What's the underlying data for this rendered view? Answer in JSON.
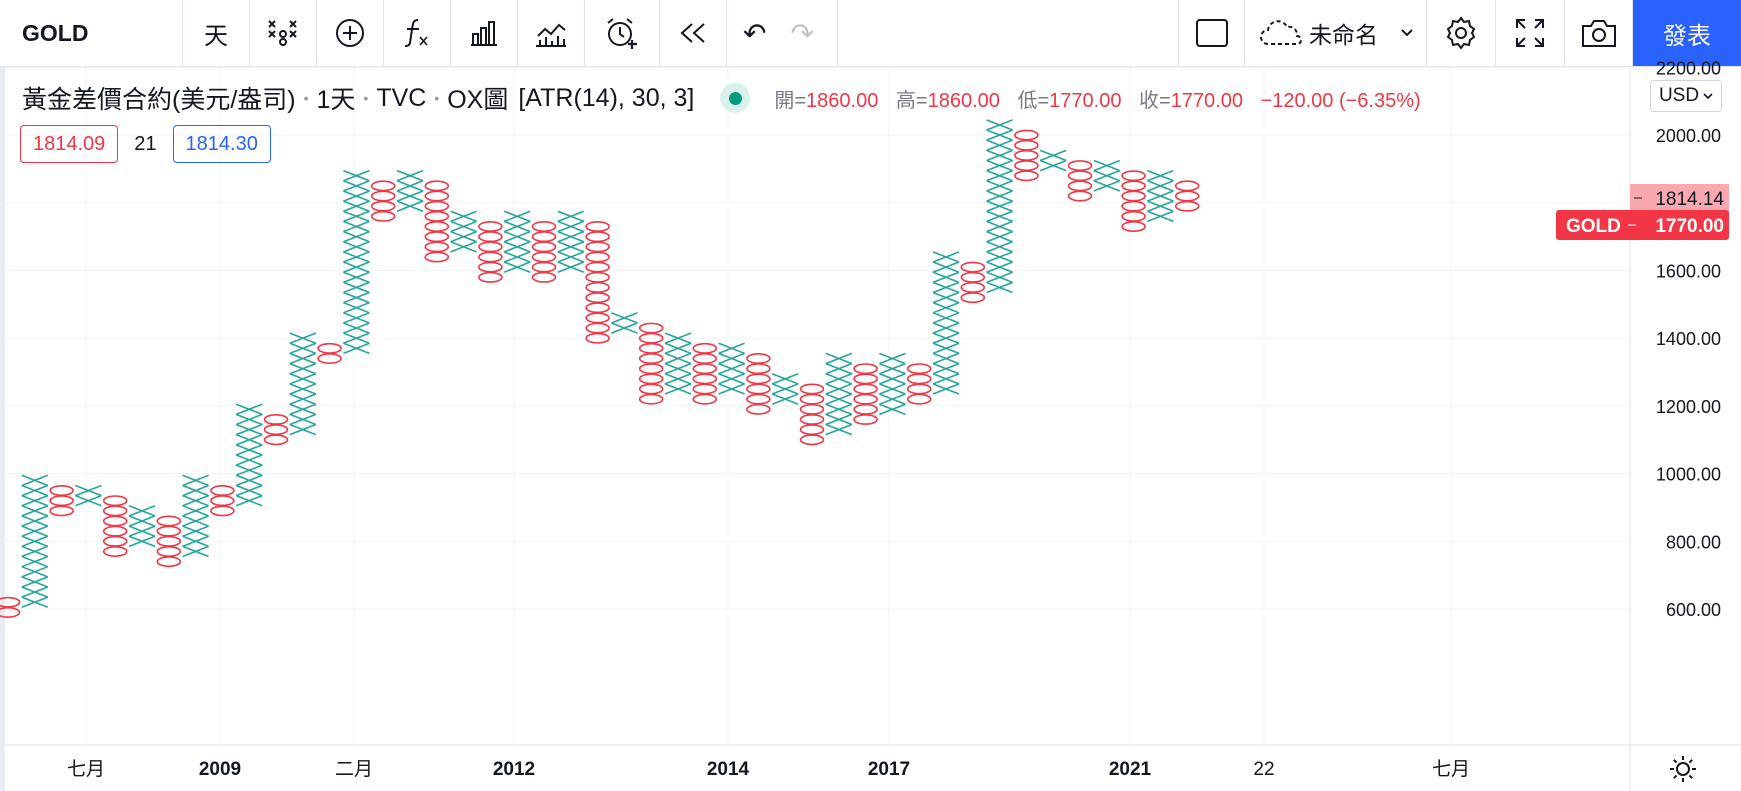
{
  "toolbar": {
    "symbol": "GOLD",
    "interval": "天",
    "undo": "↶",
    "redo": "↷",
    "layout_name": "未命名",
    "publish": "發表"
  },
  "legend": {
    "instrument": "黃金差價合約(美元/盎司)",
    "interval": "1天",
    "exchange": "TVC",
    "style": "OX圖",
    "params": "[ATR(14), 30, 3]",
    "open_label": "開=",
    "open": "1860.00",
    "high_label": "高=",
    "high": "1860.00",
    "low_label": "低=",
    "low": "1770.00",
    "close_label": "收=",
    "close": "1770.00",
    "change": "−120.00 (−6.35%)"
  },
  "price_box": {
    "bid": "1814.09",
    "spread": "21",
    "ask": "1814.30"
  },
  "currency": "USD",
  "colors": {
    "x": "#26a69a",
    "o": "#f23645",
    "accent": "#2962ff",
    "grid": "#f0f3fa"
  },
  "chart_data": {
    "type": "point-and-figure",
    "box_size": 30,
    "reversal": 3,
    "y_ticks": [
      "600.00",
      "800.00",
      "1000.00",
      "1200.00",
      "1400.00",
      "1600.00",
      "1800.00",
      "2000.00",
      "2200.00"
    ],
    "x_ticks": [
      "七月",
      "2009",
      "二月",
      "2012",
      "2014",
      "2017",
      "2021",
      "22",
      "七月"
    ],
    "markers": [
      {
        "label": "1814.14",
        "value": 1814.14
      },
      {
        "symbol": "GOLD",
        "label": "1770.00",
        "value": 1770
      }
    ],
    "columns": [
      {
        "type": "O",
        "high": 620,
        "low": 590
      },
      {
        "type": "X",
        "low": 620,
        "high": 980
      },
      {
        "type": "O",
        "high": 950,
        "low": 890
      },
      {
        "type": "X",
        "low": 920,
        "high": 950
      },
      {
        "type": "O",
        "high": 920,
        "low": 770
      },
      {
        "type": "X",
        "low": 800,
        "high": 890
      },
      {
        "type": "O",
        "high": 860,
        "low": 740
      },
      {
        "type": "X",
        "low": 770,
        "high": 980
      },
      {
        "type": "O",
        "high": 950,
        "low": 890
      },
      {
        "type": "X",
        "low": 920,
        "high": 1190
      },
      {
        "type": "O",
        "high": 1160,
        "low": 1100
      },
      {
        "type": "X",
        "low": 1130,
        "high": 1400
      },
      {
        "type": "O",
        "high": 1370,
        "low": 1340
      },
      {
        "type": "X",
        "low": 1370,
        "high": 1880
      },
      {
        "type": "O",
        "high": 1850,
        "low": 1760
      },
      {
        "type": "X",
        "low": 1790,
        "high": 1880
      },
      {
        "type": "O",
        "high": 1850,
        "low": 1640
      },
      {
        "type": "X",
        "low": 1670,
        "high": 1760
      },
      {
        "type": "O",
        "high": 1730,
        "low": 1580
      },
      {
        "type": "X",
        "low": 1610,
        "high": 1760
      },
      {
        "type": "O",
        "high": 1730,
        "low": 1580
      },
      {
        "type": "X",
        "low": 1610,
        "high": 1760
      },
      {
        "type": "O",
        "high": 1730,
        "low": 1400
      },
      {
        "type": "X",
        "low": 1430,
        "high": 1460
      },
      {
        "type": "O",
        "high": 1430,
        "low": 1220
      },
      {
        "type": "X",
        "low": 1250,
        "high": 1400
      },
      {
        "type": "O",
        "high": 1370,
        "low": 1220
      },
      {
        "type": "X",
        "low": 1250,
        "high": 1370
      },
      {
        "type": "O",
        "high": 1340,
        "low": 1190
      },
      {
        "type": "X",
        "low": 1220,
        "high": 1280
      },
      {
        "type": "O",
        "high": 1250,
        "low": 1100
      },
      {
        "type": "X",
        "low": 1130,
        "high": 1340
      },
      {
        "type": "O",
        "high": 1310,
        "low": 1160
      },
      {
        "type": "X",
        "low": 1190,
        "high": 1340
      },
      {
        "type": "O",
        "high": 1310,
        "low": 1220
      },
      {
        "type": "X",
        "low": 1250,
        "high": 1640
      },
      {
        "type": "O",
        "high": 1610,
        "low": 1520
      },
      {
        "type": "X",
        "low": 1550,
        "high": 2030
      },
      {
        "type": "O",
        "high": 2000,
        "low": 1880
      },
      {
        "type": "X",
        "low": 1910,
        "high": 1940
      },
      {
        "type": "O",
        "high": 1910,
        "low": 1820
      },
      {
        "type": "X",
        "low": 1850,
        "high": 1910
      },
      {
        "type": "O",
        "high": 1880,
        "low": 1730
      },
      {
        "type": "X",
        "low": 1760,
        "high": 1880
      },
      {
        "type": "O",
        "high": 1850,
        "low": 1790
      }
    ]
  }
}
